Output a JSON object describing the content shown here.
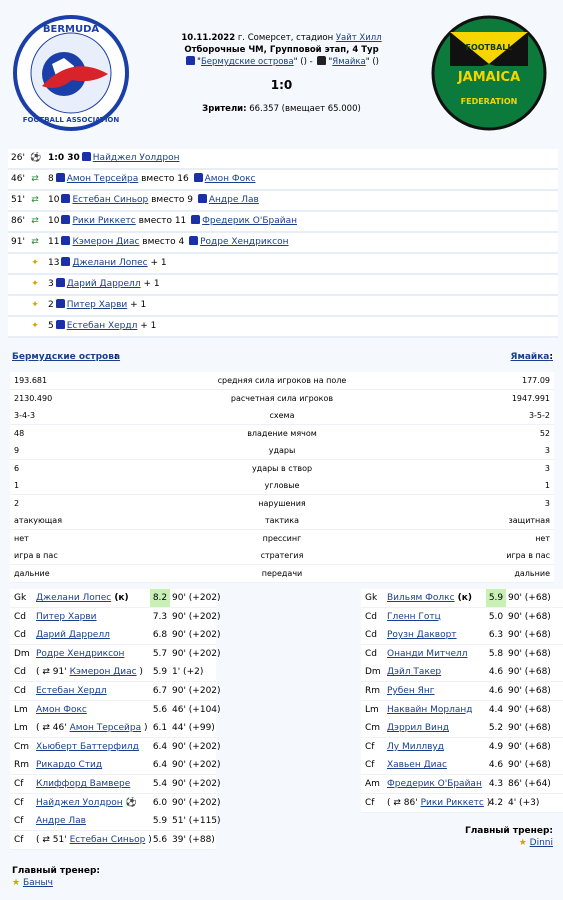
{
  "match": {
    "date": "10.11.2022",
    "venue_prefix": "г. Сомерсет, стадион",
    "venue": "Уайт Хилл",
    "stage": "Отборочные ЧМ, Групповой этап, 4 Тур",
    "home": "Бермудские острова",
    "away": "Ямайка",
    "home_suffix": "\" () - ",
    "away_suffix": "\" ()",
    "score": "1:0",
    "attendance_label": "Зрители:",
    "attendance": "66.357 (вмещает 65.000)"
  },
  "logos": {
    "home_top": "BERMUDA",
    "home_bottom": "FOOTBALL ASSOCIATION",
    "away_top": "FOOTBALL",
    "away_mid": "JAMAICA",
    "away_bottom": "FEDERATION"
  },
  "events": [
    {
      "min": "26'",
      "icon": "ball",
      "pre": "1:0 30",
      "name": "Найджел Уолдрон",
      "mid": "",
      "name2": "",
      "post": ""
    },
    {
      "min": "46'",
      "icon": "sub",
      "pre": "8",
      "name": "Амон Терсейра",
      "mid": " вместо 16",
      "name2": "Амон Фокс",
      "post": ""
    },
    {
      "min": "51'",
      "icon": "sub",
      "pre": "10",
      "name": "Естебан Синьор",
      "mid": " вместо 9",
      "name2": "Андре Лав",
      "post": ""
    },
    {
      "min": "86'",
      "icon": "sub",
      "pre": "10",
      "name": "Рики Риккетс",
      "mid": " вместо 11",
      "name2": "Фредерик О'Брайан",
      "post": ""
    },
    {
      "min": "91'",
      "icon": "sub",
      "pre": "11",
      "name": "Кэмерон Диас",
      "mid": " вместо 4",
      "name2": "Родре Хендриксон",
      "post": ""
    },
    {
      "min": "",
      "icon": "plus",
      "pre": "13",
      "name": "Джелани Лопес",
      "mid": "",
      "name2": "",
      "post": " + 1"
    },
    {
      "min": "",
      "icon": "plus",
      "pre": "3",
      "name": "Дарий Даррелл",
      "mid": "",
      "name2": "",
      "post": " + 1"
    },
    {
      "min": "",
      "icon": "plus",
      "pre": "2",
      "name": "Питер Харви",
      "mid": "",
      "name2": "",
      "post": " + 1"
    },
    {
      "min": "",
      "icon": "plus",
      "pre": "5",
      "name": "Естебан Хердл",
      "mid": "",
      "name2": "",
      "post": " + 1"
    }
  ],
  "stats": {
    "home_team": "Бермудские острова",
    "away_team": "Ямайка",
    "rows": [
      {
        "l": "193.681",
        "m": "средняя сила игроков на поле",
        "r": "177.09"
      },
      {
        "l": "2130.490",
        "m": "расчетная сила игроков",
        "r": "1947.991"
      },
      {
        "l": "3-4-3",
        "m": "схема",
        "r": "3-5-2"
      },
      {
        "l": "48",
        "m": "владение мячом",
        "r": "52"
      },
      {
        "l": "9",
        "m": "удары",
        "r": "3"
      },
      {
        "l": "6",
        "m": "удары в створ",
        "r": "3"
      },
      {
        "l": "1",
        "m": "угловые",
        "r": "1"
      },
      {
        "l": "2",
        "m": "нарушения",
        "r": "3"
      },
      {
        "l": "атакующая",
        "m": "тактика",
        "r": "защитная"
      },
      {
        "l": "нет",
        "m": "прессинг",
        "r": "нет"
      },
      {
        "l": "игра в пас",
        "m": "стратегия",
        "r": "игра в пас"
      },
      {
        "l": "дальние",
        "m": "передачи",
        "r": "дальние"
      }
    ]
  },
  "home_players": [
    {
      "pos": "Gk",
      "pre": "",
      "name": "Джелани Лопес",
      "post": " (к)",
      "rating": "8.2",
      "time": "90' (+202)",
      "hl": true
    },
    {
      "pos": "Cd",
      "pre": "",
      "name": "Питер Харви",
      "post": "",
      "rating": "7.3",
      "time": "90' (+202)",
      "hl": false
    },
    {
      "pos": "Cd",
      "pre": "",
      "name": "Дарий Даррелл",
      "post": "",
      "rating": "6.8",
      "time": "90' (+202)",
      "hl": false
    },
    {
      "pos": "Dm",
      "pre": "",
      "name": "Родре Хендриксон",
      "post": "",
      "rating": "5.7",
      "time": "90' (+202)",
      "hl": false
    },
    {
      "pos": "Cd",
      "pre": "( ⇄ 91'",
      "name": "Кэмерон Диас",
      "post": " )",
      "rating": "5.9",
      "time": "1' (+2)",
      "hl": false
    },
    {
      "pos": "Cd",
      "pre": "",
      "name": "Естебан Хердл",
      "post": "",
      "rating": "6.7",
      "time": "90' (+202)",
      "hl": false
    },
    {
      "pos": "Lm",
      "pre": "",
      "name": "Амон Фокс",
      "post": "",
      "rating": "5.6",
      "time": "46' (+104)",
      "hl": false
    },
    {
      "pos": "Lm",
      "pre": "( ⇄ 46'",
      "name": "Амон Терсейра",
      "post": " )",
      "rating": "6.1",
      "time": "44' (+99)",
      "hl": false
    },
    {
      "pos": "Cm",
      "pre": "",
      "name": "Хьюберт Баттерфилд",
      "post": "",
      "rating": "6.4",
      "time": "90' (+202)",
      "hl": false
    },
    {
      "pos": "Rm",
      "pre": "",
      "name": "Рикардо Стид",
      "post": "",
      "rating": "6.4",
      "time": "90' (+202)",
      "hl": false
    },
    {
      "pos": "Cf",
      "pre": "",
      "name": "Клиффорд Вамвере",
      "post": "",
      "rating": "5.4",
      "time": "90' (+202)",
      "hl": false
    },
    {
      "pos": "Cf",
      "pre": "",
      "name": "Найджел Уолдрон",
      "post": " ⚽",
      "rating": "6.0",
      "time": "90' (+202)",
      "hl": false
    },
    {
      "pos": "Cf",
      "pre": "",
      "name": "Андре Лав",
      "post": "",
      "rating": "5.9",
      "time": "51' (+115)",
      "hl": false
    },
    {
      "pos": "Cf",
      "pre": "( ⇄ 51'",
      "name": "Естебан Синьор",
      "post": " )",
      "rating": "5.6",
      "time": "39' (+88)",
      "hl": false
    }
  ],
  "away_players": [
    {
      "pos": "Gk",
      "pre": "",
      "name": "Вильям Фолкс",
      "post": " (к)",
      "rating": "5.9",
      "time": "90' (+68)",
      "hl": true
    },
    {
      "pos": "Cd",
      "pre": "",
      "name": "Гленн Готц",
      "post": "",
      "rating": "5.0",
      "time": "90' (+68)",
      "hl": false
    },
    {
      "pos": "Cd",
      "pre": "",
      "name": "Роузн Дакворт",
      "post": "",
      "rating": "6.3",
      "time": "90' (+68)",
      "hl": false
    },
    {
      "pos": "Cd",
      "pre": "",
      "name": "Онанди Митчелл",
      "post": "",
      "rating": "5.8",
      "time": "90' (+68)",
      "hl": false
    },
    {
      "pos": "Dm",
      "pre": "",
      "name": "Дэйл Такер",
      "post": "",
      "rating": "4.6",
      "time": "90' (+68)",
      "hl": false
    },
    {
      "pos": "Rm",
      "pre": "",
      "name": "Рубен Янг",
      "post": "",
      "rating": "4.6",
      "time": "90' (+68)",
      "hl": false
    },
    {
      "pos": "Lm",
      "pre": "",
      "name": "Наквайн Морланд",
      "post": "",
      "rating": "4.4",
      "time": "90' (+68)",
      "hl": false
    },
    {
      "pos": "Cm",
      "pre": "",
      "name": "Дэррил Винд",
      "post": "",
      "rating": "5.2",
      "time": "90' (+68)",
      "hl": false
    },
    {
      "pos": "Cf",
      "pre": "",
      "name": "Лу Миллвуд",
      "post": "",
      "rating": "4.9",
      "time": "90' (+68)",
      "hl": false
    },
    {
      "pos": "Cf",
      "pre": "",
      "name": "Хавьен Диас",
      "post": "",
      "rating": "4.6",
      "time": "90' (+68)",
      "hl": false
    },
    {
      "pos": "Am",
      "pre": "",
      "name": "Фредерик О'Брайан",
      "post": "",
      "rating": "4.3",
      "time": "86' (+64)",
      "hl": false
    },
    {
      "pos": "Cf",
      "pre": "( ⇄ 86'",
      "name": "Рики Риккетс",
      "post": " )",
      "rating": "4.2",
      "time": "4' (+3)",
      "hl": false
    }
  ],
  "coaches": {
    "label": "Главный тренер:",
    "home": "Баныч",
    "away": "Dinni"
  }
}
